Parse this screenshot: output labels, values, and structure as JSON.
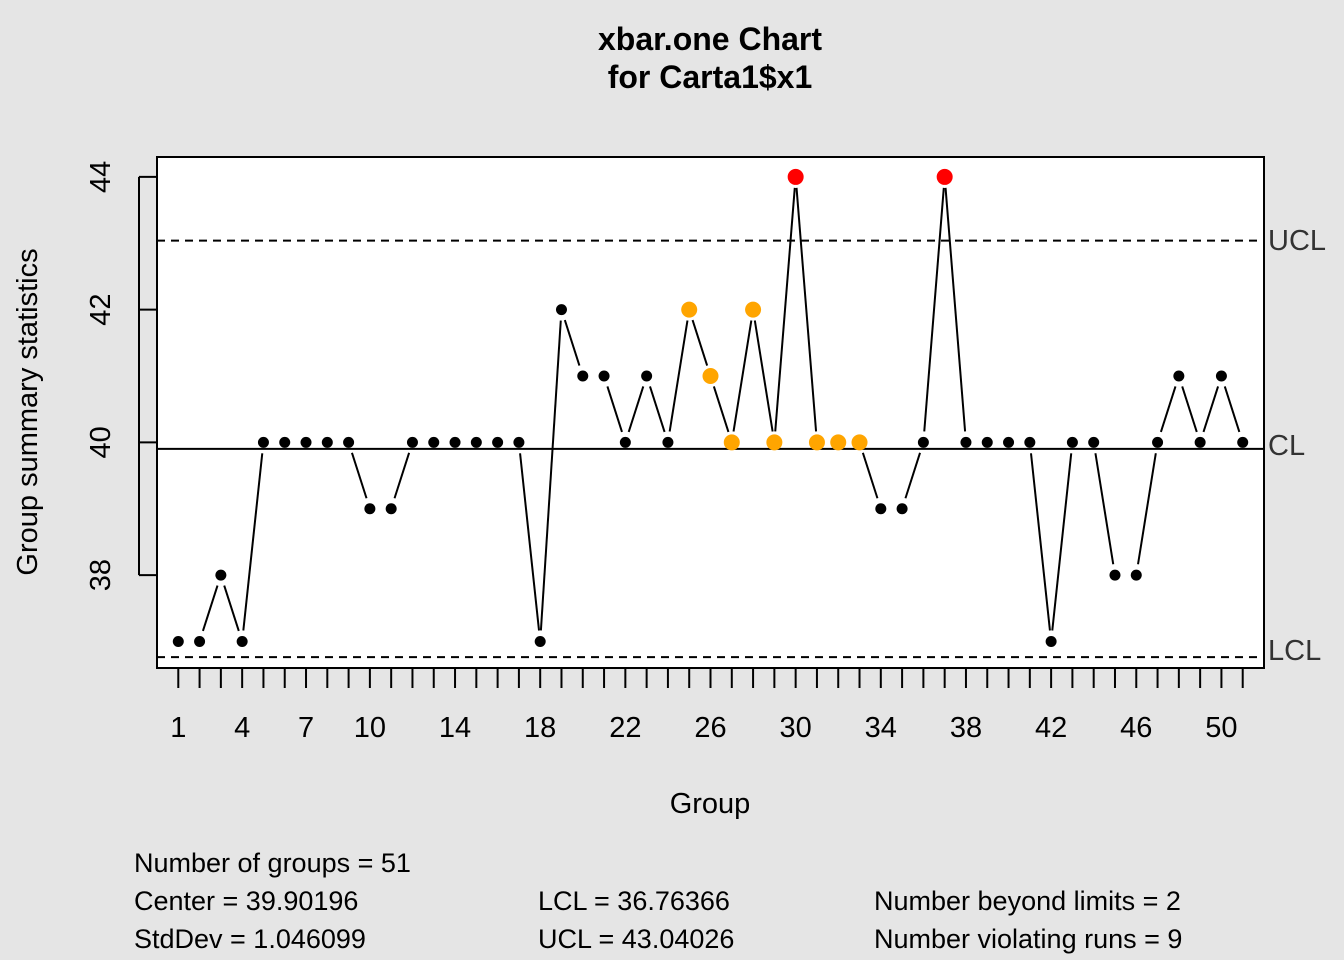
{
  "chart_data": {
    "type": "line",
    "title": "xbar.one Chart",
    "subtitle": "for Carta1$x1",
    "xlabel": "Group",
    "ylabel": "Group summary statistics",
    "x_tick_labels": [
      "1",
      "4",
      "7",
      "10",
      "14",
      "18",
      "22",
      "26",
      "30",
      "34",
      "38",
      "42",
      "46",
      "50"
    ],
    "x_tick_values": [
      1,
      4,
      7,
      10,
      14,
      18,
      22,
      26,
      30,
      34,
      38,
      42,
      46,
      50
    ],
    "y_ticks": [
      38,
      40,
      42,
      44
    ],
    "ylim": [
      36.6,
      44.3
    ],
    "xlim": [
      0,
      52
    ],
    "series": [
      {
        "x": [
          1,
          2,
          3,
          4,
          5,
          6,
          7,
          8,
          9,
          10,
          11,
          12,
          13,
          14,
          15,
          16,
          17,
          18,
          19,
          20,
          21,
          22,
          23,
          24,
          25,
          26,
          27,
          28,
          29,
          30,
          31,
          32,
          33,
          34,
          35,
          36,
          37,
          38,
          39,
          40,
          41,
          42,
          43,
          44,
          45,
          46,
          47,
          48,
          49,
          50,
          51
        ],
        "values": [
          37,
          37,
          38,
          37,
          40,
          40,
          40,
          40,
          40,
          39,
          39,
          40,
          40,
          40,
          40,
          40,
          40,
          37,
          42,
          41,
          41,
          40,
          41,
          40,
          42,
          41,
          40,
          42,
          40,
          44,
          40,
          40,
          40,
          39,
          39,
          40,
          44,
          40,
          40,
          40,
          40,
          37,
          40,
          40,
          38,
          38,
          40,
          41,
          40,
          41,
          40
        ]
      }
    ],
    "beyond_limits": [
      30,
      37
    ],
    "violating_runs": [
      25,
      26,
      27,
      28,
      29,
      31,
      32,
      33
    ],
    "center": 39.90196,
    "lcl": 36.76366,
    "ucl": 43.04026,
    "limit_labels": {
      "ucl": "UCL",
      "cl": "CL",
      "lcl": "LCL"
    },
    "colors": {
      "normal": "#000000",
      "beyond": "#ff0000",
      "runs": "#ffa500",
      "background": "#e5e5e5",
      "plot": "#ffffff"
    }
  },
  "stats": {
    "groups": "Number of groups = 51",
    "center": "Center = 39.90196",
    "stddev": "StdDev = 1.046099",
    "lcl": "LCL = 36.76366",
    "ucl": "UCL = 43.04026",
    "beyond": "Number beyond limits = 2",
    "runs": "Number violating runs = 9"
  }
}
